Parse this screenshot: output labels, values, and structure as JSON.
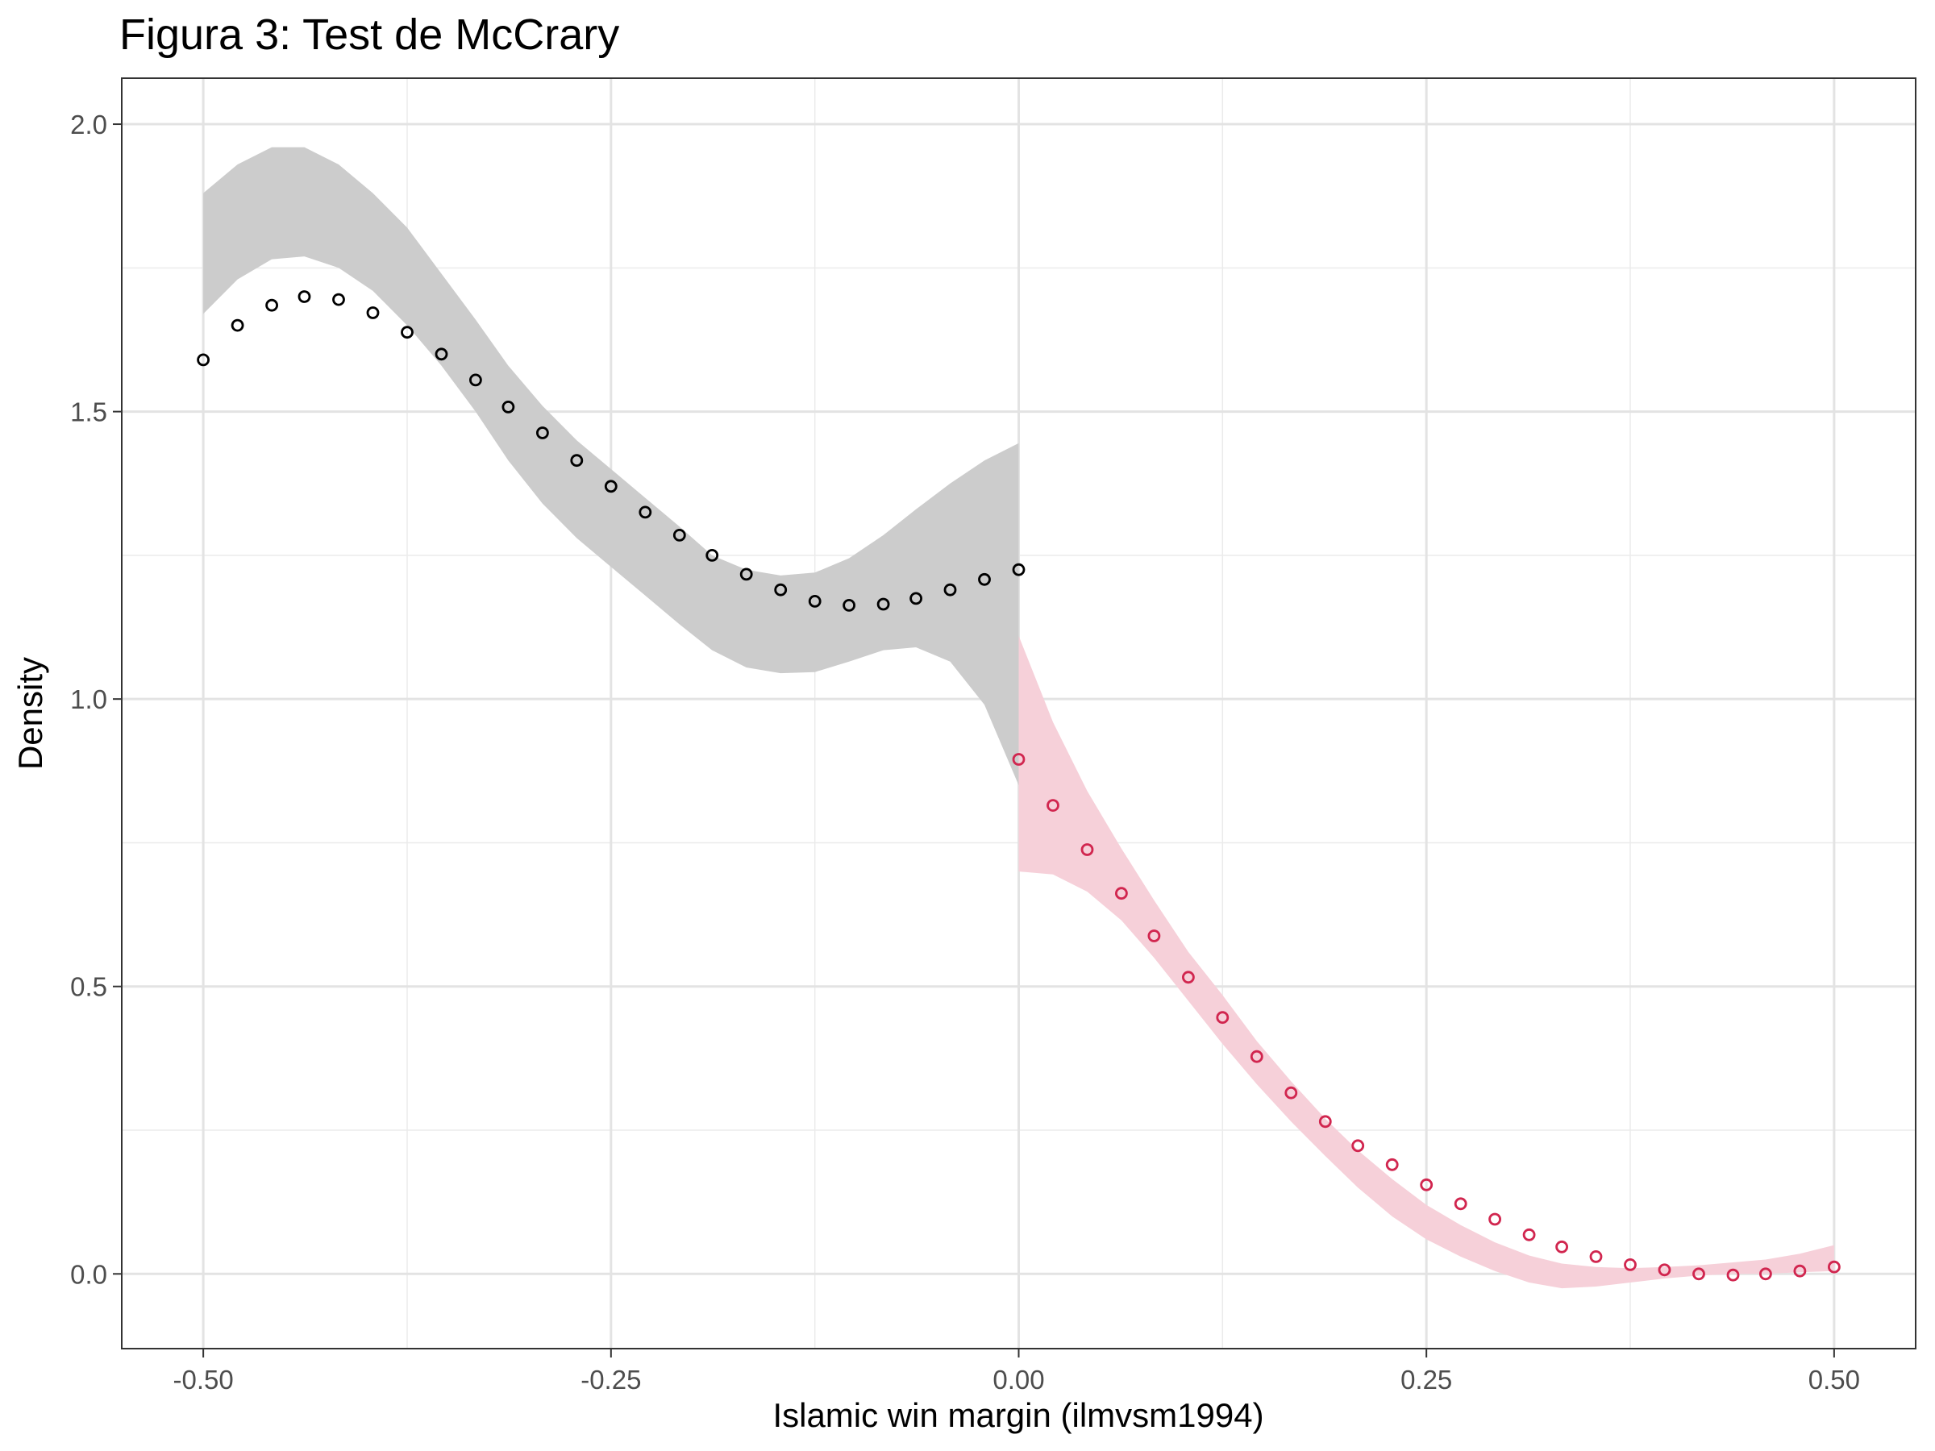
{
  "chart_data": {
    "type": "scatter",
    "title": "Figura 3: Test de McCrary",
    "xlabel": "Islamic win margin (ilmvsm1994)",
    "ylabel": "Density",
    "xlim": [
      -0.55,
      0.55
    ],
    "ylim": [
      -0.13,
      2.08
    ],
    "x_ticks": [
      -0.5,
      -0.25,
      0.0,
      0.25,
      0.5
    ],
    "x_tick_labels": [
      "-0.50",
      "-0.25",
      "0.00",
      "0.25",
      "0.50"
    ],
    "y_ticks": [
      0.0,
      0.5,
      1.0,
      1.5,
      2.0
    ],
    "y_tick_labels": [
      "0.0",
      "0.5",
      "1.0",
      "1.5",
      "2.0"
    ],
    "grid": true,
    "series": [
      {
        "color": "#000000",
        "band_color": "#cccccc",
        "x": [
          -0.5,
          -0.479,
          -0.458,
          -0.438,
          -0.417,
          -0.396,
          -0.375,
          -0.354,
          -0.333,
          -0.313,
          -0.292,
          -0.271,
          -0.25,
          -0.229,
          -0.208,
          -0.188,
          -0.167,
          -0.146,
          -0.125,
          -0.104,
          -0.083,
          -0.063,
          -0.042,
          -0.021,
          0.0
        ],
        "y": [
          1.59,
          1.65,
          1.685,
          1.7,
          1.695,
          1.672,
          1.638,
          1.6,
          1.555,
          1.508,
          1.463,
          1.415,
          1.37,
          1.325,
          1.285,
          1.25,
          1.217,
          1.19,
          1.17,
          1.163,
          1.165,
          1.175,
          1.19,
          1.208,
          1.225
        ],
        "ci_x": [
          -0.5,
          -0.479,
          -0.458,
          -0.438,
          -0.417,
          -0.396,
          -0.375,
          -0.354,
          -0.333,
          -0.313,
          -0.292,
          -0.271,
          -0.25,
          -0.229,
          -0.208,
          -0.188,
          -0.167,
          -0.146,
          -0.125,
          -0.104,
          -0.083,
          -0.063,
          -0.042,
          -0.021,
          0.0
        ],
        "ci_lower": [
          1.67,
          1.73,
          1.765,
          1.77,
          1.75,
          1.71,
          1.65,
          1.58,
          1.5,
          1.415,
          1.34,
          1.28,
          1.23,
          1.18,
          1.13,
          1.085,
          1.055,
          1.045,
          1.047,
          1.065,
          1.085,
          1.09,
          1.065,
          0.99,
          0.85
        ],
        "ci_upper": [
          1.88,
          1.93,
          1.96,
          1.96,
          1.93,
          1.88,
          1.82,
          1.74,
          1.66,
          1.58,
          1.51,
          1.45,
          1.4,
          1.35,
          1.3,
          1.25,
          1.225,
          1.215,
          1.22,
          1.245,
          1.285,
          1.33,
          1.375,
          1.415,
          1.445
        ]
      },
      {
        "color": "#d1264f",
        "band_color": "#f6d0d9",
        "x": [
          0.0,
          0.021,
          0.042,
          0.063,
          0.083,
          0.104,
          0.125,
          0.146,
          0.167,
          0.188,
          0.208,
          0.229,
          0.25,
          0.271,
          0.292,
          0.313,
          0.333,
          0.354,
          0.375,
          0.396,
          0.417,
          0.438,
          0.458,
          0.479,
          0.5
        ],
        "y": [
          0.895,
          0.815,
          0.738,
          0.662,
          0.588,
          0.516,
          0.446,
          0.378,
          0.315,
          0.265,
          0.223,
          0.19,
          0.155,
          0.122,
          0.095,
          0.068,
          0.047,
          0.03,
          0.016,
          0.007,
          0.0,
          -0.002,
          0.0,
          0.005,
          0.012
        ],
        "ci_x": [
          0.0,
          0.021,
          0.042,
          0.063,
          0.083,
          0.104,
          0.125,
          0.146,
          0.167,
          0.188,
          0.208,
          0.229,
          0.25,
          0.271,
          0.292,
          0.313,
          0.333,
          0.354,
          0.375,
          0.396,
          0.417,
          0.438,
          0.458,
          0.479,
          0.5
        ],
        "ci_lower": [
          0.7,
          0.695,
          0.665,
          0.615,
          0.55,
          0.475,
          0.4,
          0.33,
          0.265,
          0.205,
          0.15,
          0.1,
          0.06,
          0.03,
          0.005,
          -0.015,
          -0.025,
          -0.022,
          -0.015,
          -0.008,
          -0.003,
          0.0,
          0.0,
          0.003,
          0.005
        ],
        "ci_upper": [
          1.11,
          0.96,
          0.84,
          0.74,
          0.65,
          0.56,
          0.485,
          0.405,
          0.335,
          0.27,
          0.215,
          0.165,
          0.12,
          0.085,
          0.055,
          0.032,
          0.018,
          0.012,
          0.01,
          0.012,
          0.015,
          0.02,
          0.025,
          0.035,
          0.05
        ]
      }
    ]
  }
}
